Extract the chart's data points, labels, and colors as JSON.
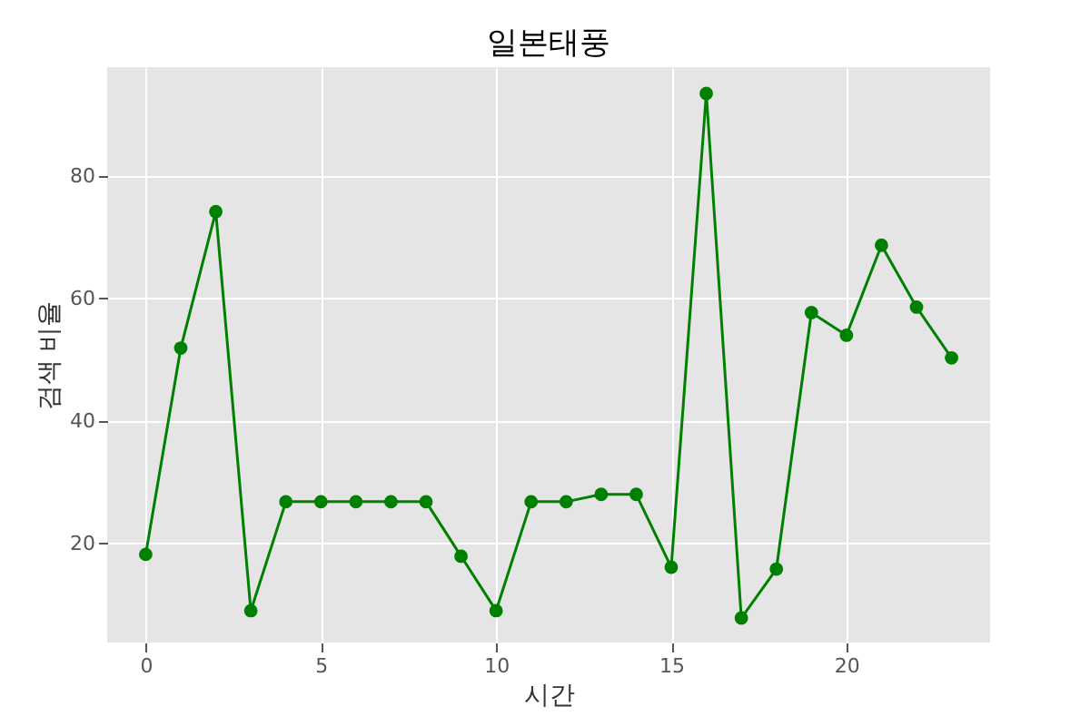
{
  "chart_data": {
    "type": "line",
    "title": "일본태풍",
    "xlabel": "시간",
    "ylabel": "검색 비율",
    "x": [
      0,
      1,
      2,
      3,
      4,
      5,
      6,
      7,
      8,
      9,
      10,
      11,
      12,
      13,
      14,
      15,
      16,
      17,
      18,
      19,
      20,
      21,
      22,
      23
    ],
    "series": [
      {
        "color": "#008000",
        "values": [
          18.2,
          51.9,
          74.2,
          9.0,
          26.8,
          26.8,
          26.8,
          26.8,
          26.8,
          17.9,
          9.0,
          26.8,
          26.8,
          28.0,
          28.0,
          16.1,
          93.5,
          7.8,
          15.8,
          57.7,
          54.0,
          68.7,
          58.6,
          50.3
        ]
      }
    ],
    "xlim": [
      -1.1,
      24.1
    ],
    "ylim": [
      3.8,
      97.8
    ],
    "xticks": [
      0,
      5,
      10,
      15,
      20
    ],
    "yticks": [
      20,
      40,
      60,
      80
    ],
    "grid": true,
    "marker": "circle",
    "line_style": "solid"
  }
}
